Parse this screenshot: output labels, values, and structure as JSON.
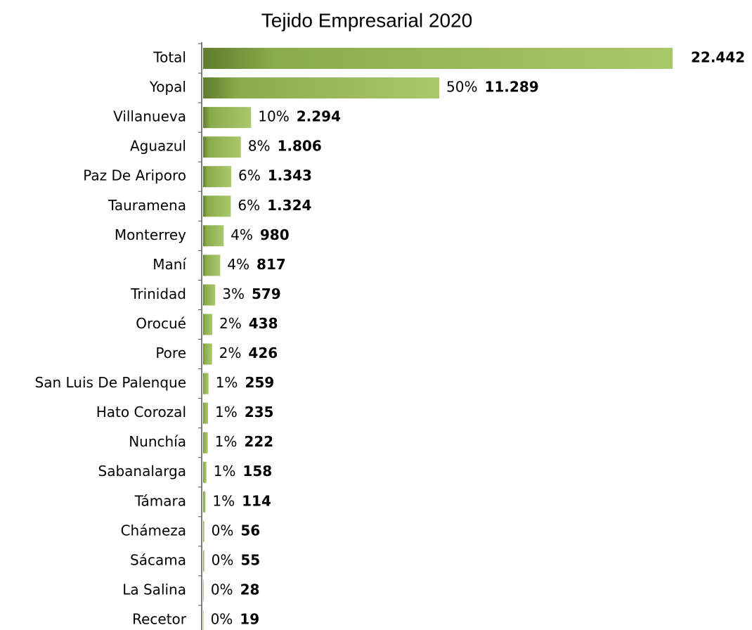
{
  "chart_data": {
    "type": "bar",
    "orientation": "horizontal",
    "title": "Tejido Empresarial 2020",
    "categories": [
      "Total",
      "Yopal",
      "Villanueva",
      "Aguazul",
      "Paz De Ariporo",
      "Tauramena",
      "Monterrey",
      "Maní",
      "Trinidad",
      "Orocué",
      "Pore",
      "San Luis De Palenque",
      "Hato Corozal",
      "Nunchía",
      "Sabanalarga",
      "Támara",
      "Chámeza",
      "Sácama",
      "La Salina",
      "Recetor"
    ],
    "values": [
      22442,
      11289,
      2294,
      1806,
      1343,
      1324,
      980,
      817,
      579,
      438,
      426,
      259,
      235,
      222,
      158,
      114,
      56,
      55,
      28,
      19
    ],
    "value_labels": [
      "22.442",
      "11.289",
      "2.294",
      "1.806",
      "1.343",
      "1.324",
      "980",
      "817",
      "579",
      "438",
      "426",
      "259",
      "235",
      "222",
      "158",
      "114",
      "56",
      "55",
      "28",
      "19"
    ],
    "share_labels": [
      null,
      "50%",
      "10%",
      "8%",
      "6%",
      "6%",
      "4%",
      "4%",
      "3%",
      "2%",
      "2%",
      "1%",
      "1%",
      "1%",
      "1%",
      "1%",
      "0%",
      "0%",
      "0%",
      "0%"
    ],
    "color": "#9bbb59",
    "xlim": [
      0,
      22442
    ]
  }
}
